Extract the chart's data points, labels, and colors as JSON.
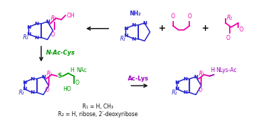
{
  "bg_color": "#ffffff",
  "blue": "#2222cc",
  "magenta": "#ee00aa",
  "green": "#009900",
  "purple": "#9900bb",
  "black": "#111111",
  "r1_label": "R₁",
  "r2_label": "R₂",
  "arrow1_label": "N-Ac-Cys",
  "arrow2_label": "Ac-Lys",
  "footnote1": "R₁ = H, CH₃",
  "footnote2": "R₂ = H, ribose, 2′-deoxyribose",
  "plus": "+",
  "nh2": "NH₂",
  "oh": "OH",
  "nac": "NAc",
  "ho": "HO",
  "nlysac": "NLys-Ac",
  "n_label": "N"
}
